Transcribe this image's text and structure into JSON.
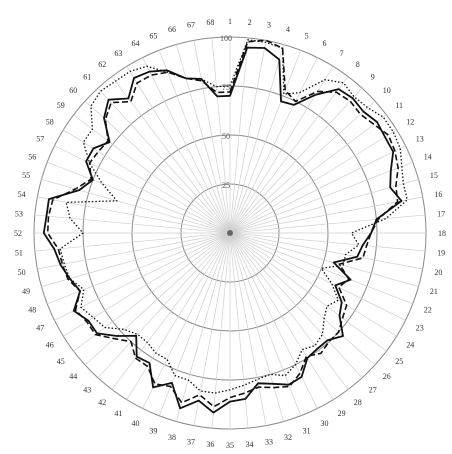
{
  "chart_data": {
    "type": "radar",
    "title": "",
    "categories": [
      "1",
      "2",
      "3",
      "4",
      "5",
      "6",
      "7",
      "8",
      "9",
      "10",
      "11",
      "12",
      "13",
      "14",
      "15",
      "16",
      "17",
      "18",
      "19",
      "20",
      "21",
      "22",
      "23",
      "24",
      "25",
      "26",
      "27",
      "28",
      "29",
      "30",
      "31",
      "32",
      "33",
      "34",
      "35",
      "36",
      "37",
      "38",
      "39",
      "40",
      "41",
      "42",
      "43",
      "44",
      "45",
      "46",
      "47",
      "48",
      "49",
      "50",
      "51",
      "52",
      "53",
      "54",
      "55",
      "56",
      "57",
      "58",
      "59",
      "60",
      "61",
      "62",
      "63",
      "64",
      "65",
      "66",
      "67",
      "68"
    ],
    "radial_ticks": [
      {
        "value": 25,
        "label": "25"
      },
      {
        "value": 50,
        "label": "50"
      },
      {
        "value": 75,
        "label": "75"
      },
      {
        "value": 100,
        "label": "100"
      }
    ],
    "rlim": [
      0,
      100
    ],
    "series": [
      {
        "style": "solid",
        "color": "#111111",
        "values": [
          70,
          95,
          96,
          92,
          72,
          73,
          83,
          92,
          93,
          92,
          94,
          93,
          93,
          88,
          85,
          89,
          75,
          72,
          68,
          66,
          55,
          66,
          60,
          67,
          70,
          78,
          74,
          74,
          75,
          82,
          83,
          80,
          78,
          85,
          86,
          92,
          87,
          93,
          82,
          88,
          78,
          79,
          71,
          78,
          85,
          85,
          89,
          82,
          85,
          88,
          90,
          95,
          94,
          94,
          80,
          75,
          82,
          82,
          77,
          87,
          92,
          86,
          93,
          92,
          89,
          82,
          80,
          70
        ]
      },
      {
        "style": "dashed",
        "color": "#111111",
        "values": [
          72,
          98,
          100,
          98,
          78,
          75,
          85,
          90,
          91,
          90,
          92,
          95,
          94,
          92,
          88,
          87,
          76,
          72,
          70,
          69,
          58,
          65,
          62,
          70,
          72,
          75,
          75,
          77,
          74,
          80,
          84,
          82,
          80,
          82,
          84,
          89,
          84,
          90,
          84,
          86,
          80,
          80,
          75,
          80,
          86,
          86,
          88,
          82,
          86,
          87,
          88,
          93,
          93,
          92,
          82,
          76,
          80,
          79,
          78,
          86,
          90,
          84,
          90,
          90,
          88,
          82,
          79,
          72
        ]
      },
      {
        "style": "dotted",
        "color": "#111111",
        "values": [
          75,
          99,
          99,
          98,
          76,
          80,
          92,
          96,
          94,
          95,
          98,
          98,
          97,
          94,
          92,
          92,
          80,
          62,
          66,
          60,
          60,
          50,
          58,
          65,
          62,
          65,
          70,
          72,
          70,
          75,
          78,
          75,
          76,
          78,
          80,
          82,
          82,
          78,
          78,
          72,
          72,
          70,
          70,
          73,
          80,
          82,
          85,
          80,
          85,
          86,
          87,
          75,
          82,
          85,
          60,
          70,
          80,
          88,
          88,
          96,
          98,
          97,
          97,
          95,
          88,
          82,
          80,
          75
        ]
      }
    ]
  }
}
